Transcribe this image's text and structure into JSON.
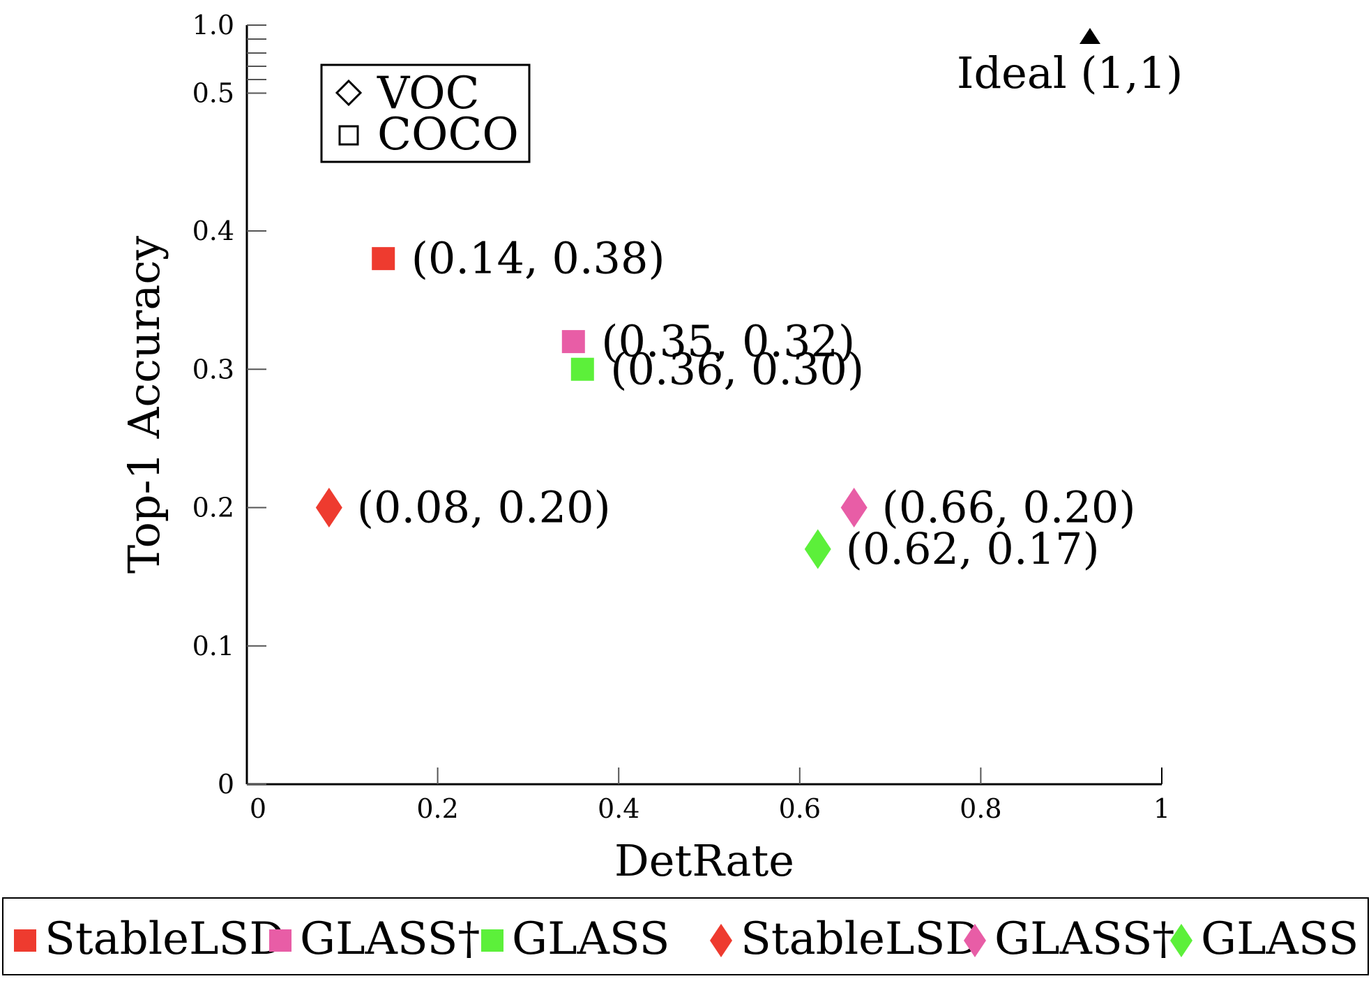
{
  "chart_data": {
    "type": "scatter",
    "xlabel": "DetRate",
    "ylabel": "Top-1 Accuracy",
    "xlim": [
      0,
      1
    ],
    "x_ticks": [
      "0",
      "0.2",
      "0.4",
      "0.6",
      "0.8",
      "1"
    ],
    "y_ticks": [
      "0",
      "0.1",
      "0.2",
      "0.3",
      "0.4",
      "0.5",
      "1.0"
    ],
    "y_axis_note": "broken axis: 0 to 0.4 linear, compressed segment up to 1.0",
    "grid": false,
    "marker_legend": {
      "placement": "top-left",
      "entries": [
        {
          "marker": "diamond",
          "label": "VOC"
        },
        {
          "marker": "square",
          "label": "COCO"
        }
      ]
    },
    "series": [
      {
        "name": "StableLSD",
        "dataset": "COCO",
        "marker": "square",
        "color": "#ee3b2f",
        "x": 0.14,
        "y": 0.38,
        "label": "(0.14, 0.38)"
      },
      {
        "name": "GLASS†",
        "dataset": "COCO",
        "marker": "square",
        "color": "#e85da6",
        "x": 0.35,
        "y": 0.32,
        "label": "(0.35, 0.32)"
      },
      {
        "name": "GLASS",
        "dataset": "COCO",
        "marker": "square",
        "color": "#5cf03a",
        "x": 0.36,
        "y": 0.3,
        "label": "(0.36, 0.30)"
      },
      {
        "name": "StableLSD",
        "dataset": "VOC",
        "marker": "diamond",
        "color": "#ee3b2f",
        "x": 0.08,
        "y": 0.2,
        "label": "(0.08, 0.20)"
      },
      {
        "name": "GLASS†",
        "dataset": "VOC",
        "marker": "diamond",
        "color": "#e85da6",
        "x": 0.66,
        "y": 0.2,
        "label": "(0.66, 0.20)"
      },
      {
        "name": "GLASS",
        "dataset": "VOC",
        "marker": "diamond",
        "color": "#5cf03a",
        "x": 0.62,
        "y": 0.17,
        "label": "(0.62, 0.17)"
      }
    ],
    "annotation": {
      "text": "Ideal (1,1)",
      "marker": "triangle",
      "color": "#000000"
    },
    "bottom_legend": {
      "placement": "bottom",
      "entries": [
        {
          "marker": "square",
          "color": "#ee3b2f",
          "label": "StableLSD"
        },
        {
          "marker": "square",
          "color": "#e85da6",
          "label": "GLASS†"
        },
        {
          "marker": "square",
          "color": "#5cf03a",
          "label": "GLASS"
        },
        {
          "marker": "diamond",
          "color": "#ee3b2f",
          "label": "StableLSD"
        },
        {
          "marker": "diamond",
          "color": "#e85da6",
          "label": "GLASS†"
        },
        {
          "marker": "diamond",
          "color": "#5cf03a",
          "label": "GLASS"
        }
      ]
    }
  }
}
